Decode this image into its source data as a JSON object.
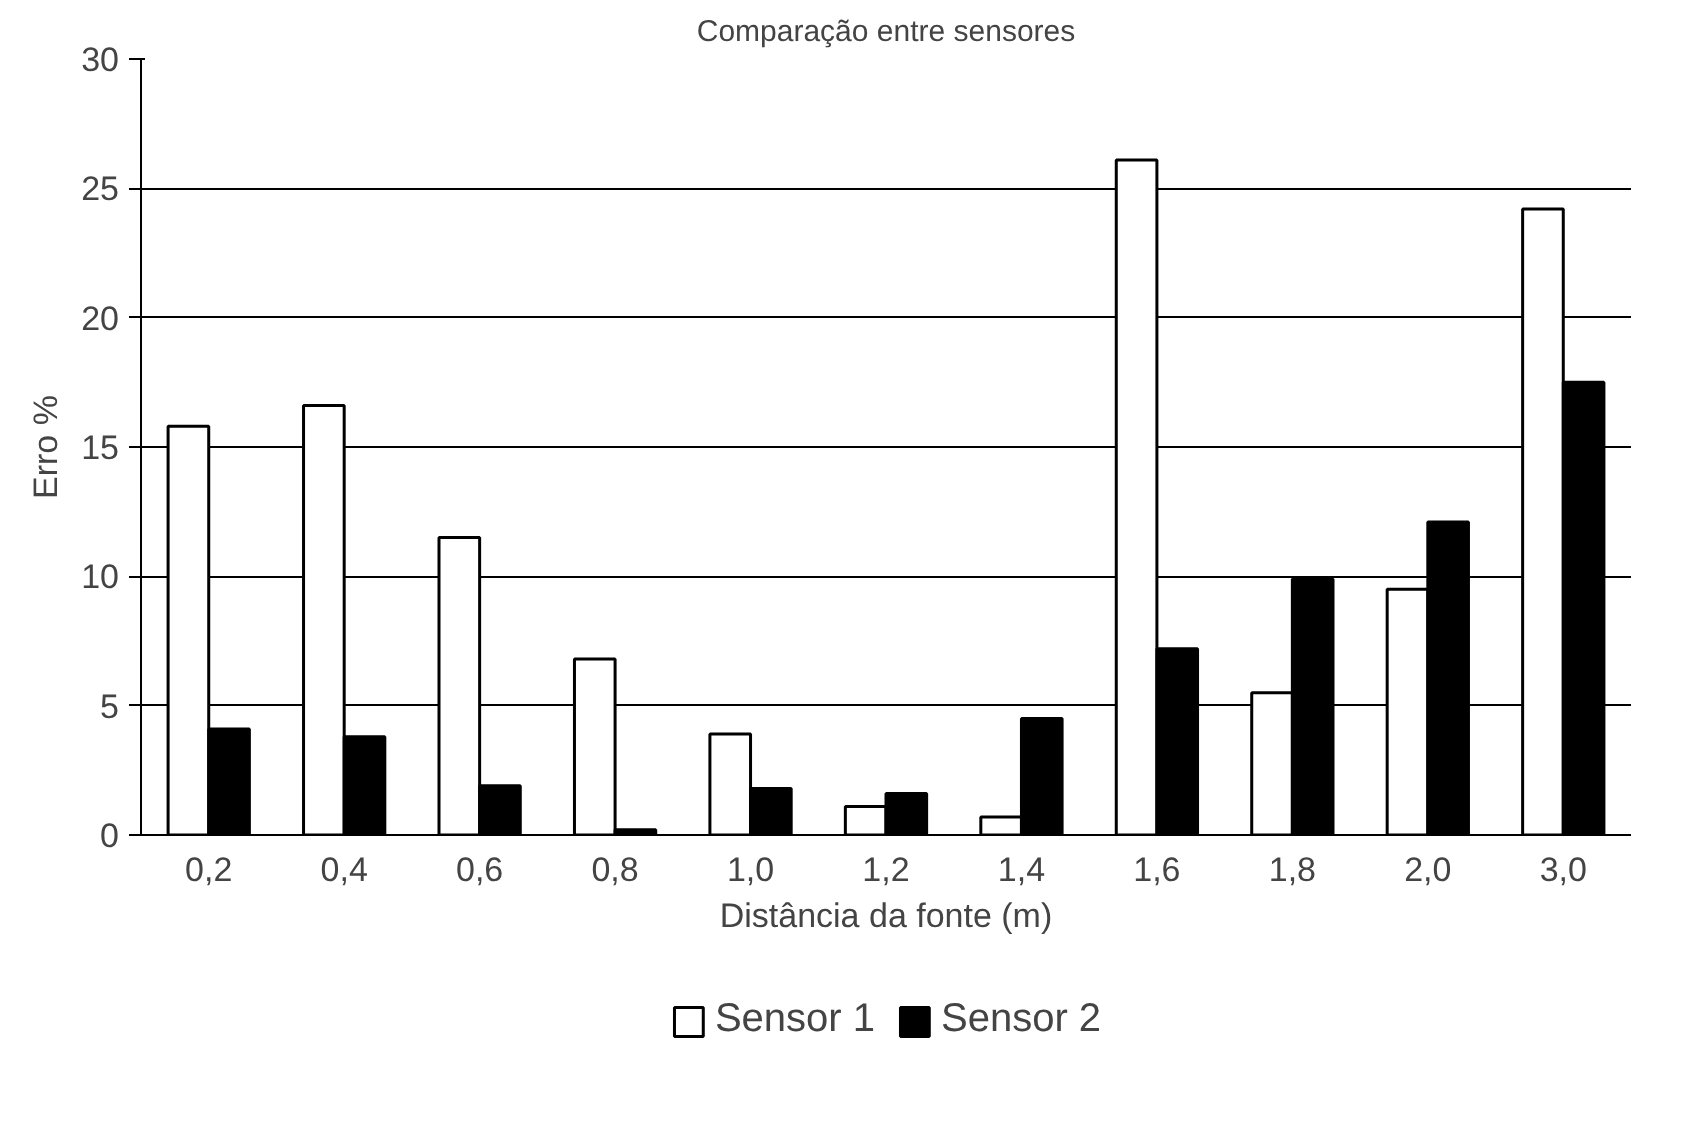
{
  "chart_data": {
    "type": "bar",
    "title": "Comparação entre sensores",
    "xlabel": "Distância da fonte (m)",
    "ylabel": "Erro %",
    "categories": [
      "0,2",
      "0,4",
      "0,6",
      "0,8",
      "1,0",
      "1,2",
      "1,4",
      "1,6",
      "1,8",
      "2,0",
      "3,0"
    ],
    "series": [
      {
        "name": "Sensor 1",
        "color": "#ffffff",
        "values": [
          15.8,
          16.6,
          11.5,
          6.8,
          3.9,
          1.1,
          0.7,
          26.1,
          5.5,
          9.5,
          24.2
        ]
      },
      {
        "name": "Sensor 2",
        "color": "#000000",
        "values": [
          4.1,
          3.8,
          1.9,
          0.2,
          1.8,
          1.6,
          4.5,
          7.2,
          9.9,
          12.1,
          17.5
        ]
      }
    ],
    "ylim": [
      0,
      30
    ],
    "yticks": [
      0,
      5,
      10,
      15,
      20,
      25,
      30
    ],
    "grid": "y",
    "legend": "bottom"
  }
}
